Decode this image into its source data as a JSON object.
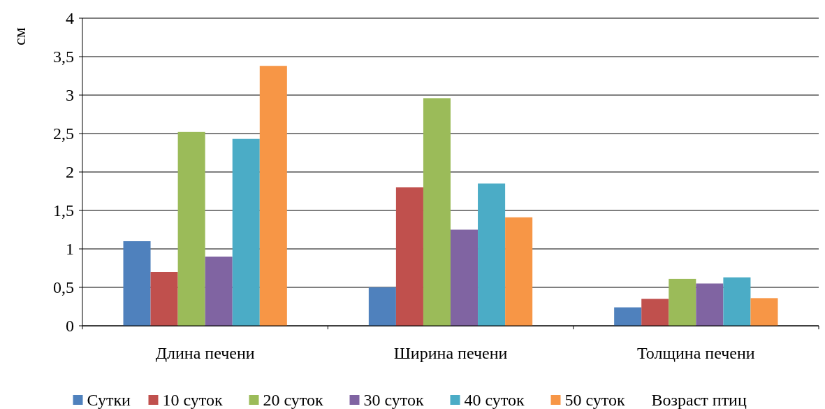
{
  "chart_data": {
    "type": "bar",
    "ylabel": "см",
    "legend_title": "Возраст птиц",
    "categories": [
      "Длина печени",
      "Ширина печени",
      "Толщина печени"
    ],
    "series": [
      {
        "name": "Сутки",
        "color": "#4f81bd",
        "values": [
          1.1,
          0.5,
          0.24
        ]
      },
      {
        "name": "10 суток",
        "color": "#c0504d",
        "values": [
          0.7,
          1.8,
          0.35
        ]
      },
      {
        "name": "20 суток",
        "color": "#9bbb59",
        "values": [
          2.52,
          2.96,
          0.61
        ]
      },
      {
        "name": "30 суток",
        "color": "#8064a2",
        "values": [
          0.9,
          1.25,
          0.55
        ]
      },
      {
        "name": "40 суток",
        "color": "#4bacc6",
        "values": [
          2.43,
          1.85,
          0.63
        ]
      },
      {
        "name": "50 суток",
        "color": "#f79646",
        "values": [
          3.38,
          1.41,
          0.36
        ]
      }
    ],
    "ylim": [
      0,
      4
    ],
    "yticks": [
      {
        "value": 0,
        "label": "0"
      },
      {
        "value": 0.5,
        "label": "0,5"
      },
      {
        "value": 1,
        "label": "1"
      },
      {
        "value": 1.5,
        "label": "1,5"
      },
      {
        "value": 2,
        "label": "2"
      },
      {
        "value": 2.5,
        "label": "2,5"
      },
      {
        "value": 3,
        "label": "3"
      },
      {
        "value": 3.5,
        "label": "3,5"
      },
      {
        "value": 4,
        "label": "4"
      }
    ],
    "grid": "y",
    "legend": "bottom"
  }
}
